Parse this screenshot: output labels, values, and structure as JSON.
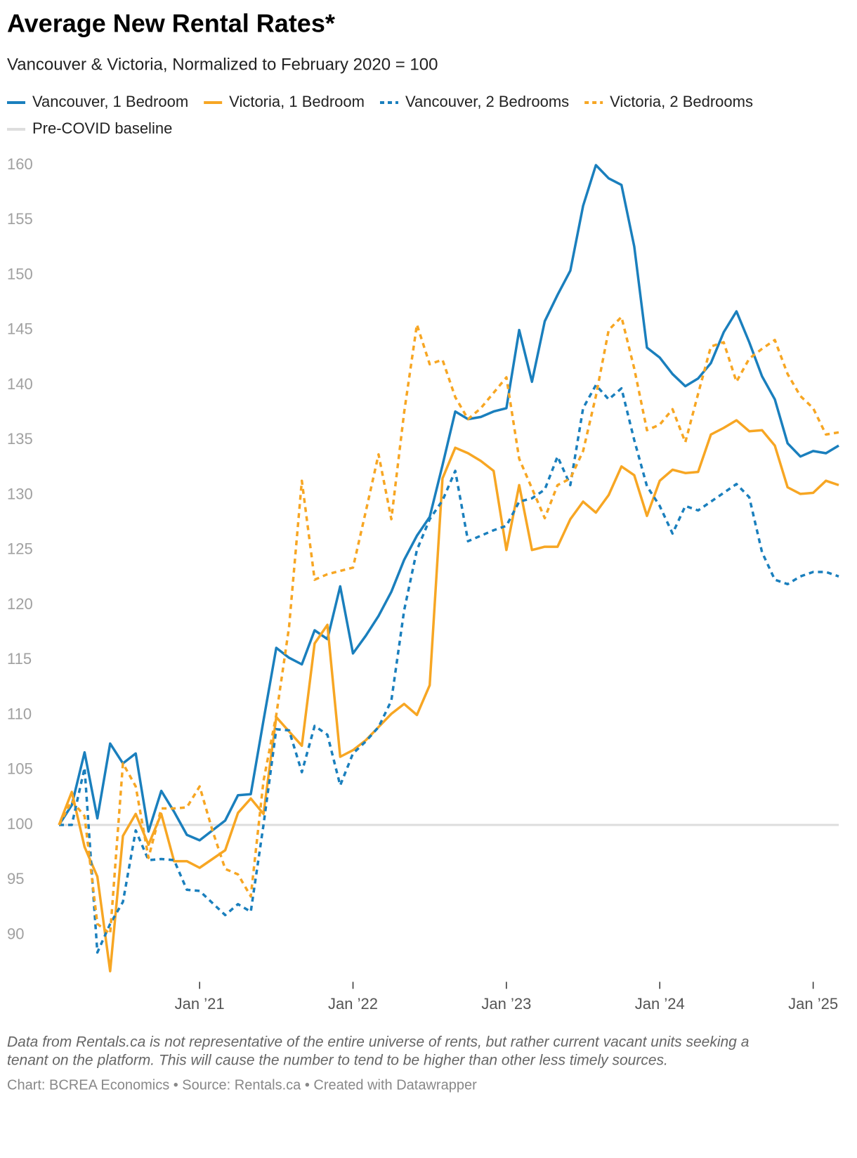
{
  "chart_data": {
    "type": "line",
    "title": "Average New Rental Rates*",
    "subtitle": "Vancouver & Victoria, Normalized to February 2020 = 100",
    "categories": [
      null,
      null,
      null,
      null,
      null,
      null,
      null,
      null,
      null,
      null,
      null,
      "Jan ’21",
      null,
      null,
      null,
      null,
      null,
      null,
      null,
      null,
      null,
      null,
      null,
      "Jan ’22",
      null,
      null,
      null,
      null,
      null,
      null,
      null,
      null,
      null,
      null,
      null,
      "Jan ’23",
      null,
      null,
      null,
      null,
      null,
      null,
      null,
      null,
      null,
      null,
      null,
      "Jan ’24",
      null,
      null,
      null,
      null,
      null,
      null,
      null,
      null,
      null,
      null,
      null,
      "Jan ’25",
      null,
      null
    ],
    "series": [
      {
        "name": "Vancouver, 1 Bedroom",
        "color": "#1a7fbd",
        "dashed": false,
        "values": [
          100,
          101.8,
          106.6,
          100.6,
          107.4,
          105.6,
          106.5,
          99.4,
          103.1,
          101.2,
          99.1,
          98.6,
          99.5,
          100.4,
          102.7,
          102.8,
          109.5,
          116.1,
          115.2,
          114.6,
          117.7,
          116.9,
          121.7,
          115.6,
          117.2,
          119.0,
          121.2,
          124.1,
          126.3,
          128.0,
          132.7,
          137.6,
          136.9,
          137.1,
          137.6,
          137.9,
          145.0,
          140.3,
          145.8,
          148.2,
          150.4,
          156.3,
          160.0,
          158.8,
          158.2,
          152.6,
          143.4,
          142.5,
          141.0,
          139.9,
          140.6,
          142.0,
          144.8,
          146.7,
          143.9,
          140.8,
          138.7,
          134.7,
          133.5,
          134.0,
          133.8,
          134.5
        ]
      },
      {
        "name": "Victoria, 1 Bedroom",
        "color": "#f7a623",
        "dashed": false,
        "values": [
          100,
          103.0,
          98.0,
          95.3,
          86.7,
          99.0,
          101.0,
          98.2,
          101.0,
          96.7,
          96.7,
          96.1,
          96.9,
          97.7,
          101.1,
          102.4,
          101.0,
          109.8,
          108.5,
          107.2,
          116.5,
          118.2,
          106.2,
          106.8,
          107.7,
          108.9,
          110.1,
          111.0,
          110.0,
          112.7,
          131.5,
          134.3,
          133.8,
          133.1,
          132.2,
          125.0,
          130.9,
          125.0,
          125.3,
          125.3,
          127.8,
          129.4,
          128.4,
          130.0,
          132.6,
          131.8,
          128.1,
          131.3,
          132.3,
          132.0,
          132.1,
          135.5,
          136.1,
          136.8,
          135.8,
          135.9,
          134.5,
          130.7,
          130.1,
          130.2,
          131.3,
          130.9
        ]
      },
      {
        "name": "Vancouver, 2 Bedrooms",
        "color": "#1a7fbd",
        "dashed": true,
        "values": [
          100,
          100.0,
          105.2,
          88.4,
          91.0,
          93.0,
          99.5,
          96.8,
          96.9,
          96.8,
          94.1,
          94.0,
          92.9,
          91.8,
          92.8,
          92.1,
          100.0,
          108.7,
          108.6,
          104.8,
          109.0,
          108.2,
          103.6,
          106.5,
          107.6,
          108.9,
          111.3,
          119.5,
          125.0,
          127.8,
          129.5,
          132.2,
          125.8,
          126.3,
          126.8,
          127.2,
          129.4,
          129.7,
          130.5,
          133.5,
          130.9,
          137.9,
          140.0,
          138.7,
          139.7,
          135.0,
          130.8,
          129.0,
          126.5,
          129.0,
          128.6,
          129.4,
          130.2,
          131.0,
          129.8,
          124.8,
          122.3,
          121.9,
          122.6,
          123.0,
          123.0,
          122.6
        ]
      },
      {
        "name": "Victoria, 2 Bedrooms",
        "color": "#f7a623",
        "dashed": true,
        "values": [
          100,
          102.2,
          100.8,
          91.0,
          90.1,
          105.6,
          103.5,
          97.0,
          101.5,
          101.5,
          101.6,
          103.5,
          99.5,
          96.0,
          95.5,
          93.5,
          104.0,
          110.0,
          118.0,
          131.3,
          122.3,
          122.8,
          123.1,
          123.4,
          128.5,
          133.7,
          127.8,
          137.5,
          145.5,
          141.9,
          142.3,
          138.9,
          136.9,
          137.9,
          139.3,
          140.7,
          133.3,
          130.6,
          127.9,
          130.9,
          131.5,
          134.0,
          139.0,
          145.0,
          146.2,
          141.5,
          135.9,
          136.4,
          137.8,
          134.8,
          139.2,
          143.5,
          143.9,
          140.3,
          142.4,
          143.3,
          144.1,
          141.0,
          139.0,
          137.9,
          135.5,
          135.7
        ]
      }
    ],
    "baseline": {
      "name": "Pre-COVID baseline",
      "value": 100,
      "color": "#dddddd"
    },
    "ylim": [
      86.5,
      161
    ],
    "yticks": [
      90,
      95,
      100,
      105,
      110,
      115,
      120,
      125,
      130,
      135,
      140,
      145,
      150,
      155,
      160
    ],
    "grid": false,
    "notes": [
      "Data from Rentals.ca is not representative of the entire universe of rents, but rather current vacant units seeking a",
      "tenant on the platform. This will cause the number to tend to be higher than other less timely sources."
    ],
    "credit": "Chart: BCREA Economics • Source: Rentals.ca • Created with Datawrapper"
  }
}
